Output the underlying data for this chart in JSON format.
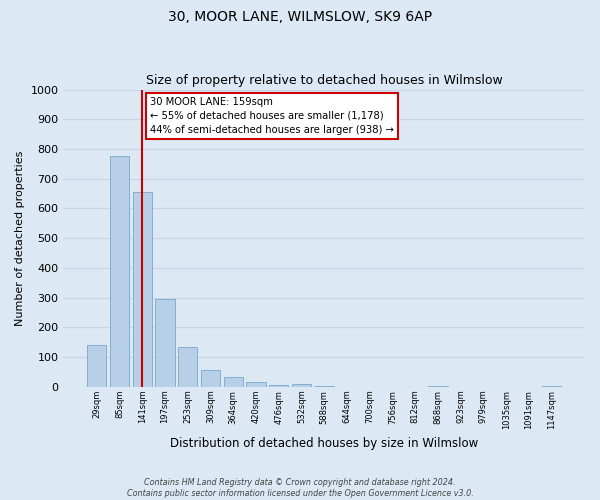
{
  "title": "30, MOOR LANE, WILMSLOW, SK9 6AP",
  "subtitle": "Size of property relative to detached houses in Wilmslow",
  "xlabel": "Distribution of detached houses by size in Wilmslow",
  "ylabel": "Number of detached properties",
  "bar_labels": [
    "29sqm",
    "85sqm",
    "141sqm",
    "197sqm",
    "253sqm",
    "309sqm",
    "364sqm",
    "420sqm",
    "476sqm",
    "532sqm",
    "588sqm",
    "644sqm",
    "700sqm",
    "756sqm",
    "812sqm",
    "868sqm",
    "923sqm",
    "979sqm",
    "1035sqm",
    "1091sqm",
    "1147sqm"
  ],
  "bar_heights": [
    140,
    775,
    655,
    295,
    135,
    57,
    32,
    18,
    8,
    10,
    3,
    1,
    0,
    0,
    0,
    3,
    0,
    0,
    0,
    0,
    3
  ],
  "bar_color": "#b8cfe8",
  "bar_edge_color": "#7aa8cc",
  "property_line_x": 2.0,
  "property_line_color": "#cc0000",
  "ylim": [
    0,
    1000
  ],
  "yticks": [
    0,
    100,
    200,
    300,
    400,
    500,
    600,
    700,
    800,
    900,
    1000
  ],
  "annotation_title": "30 MOOR LANE: 159sqm",
  "annotation_line1": "← 55% of detached houses are smaller (1,178)",
  "annotation_line2": "44% of semi-detached houses are larger (938) →",
  "annotation_box_color": "#ffffff",
  "annotation_box_edge": "#cc0000",
  "grid_color": "#c8d4e4",
  "bg_color": "#dce8f4",
  "footer_line1": "Contains HM Land Registry data © Crown copyright and database right 2024.",
  "footer_line2": "Contains public sector information licensed under the Open Government Licence v3.0."
}
